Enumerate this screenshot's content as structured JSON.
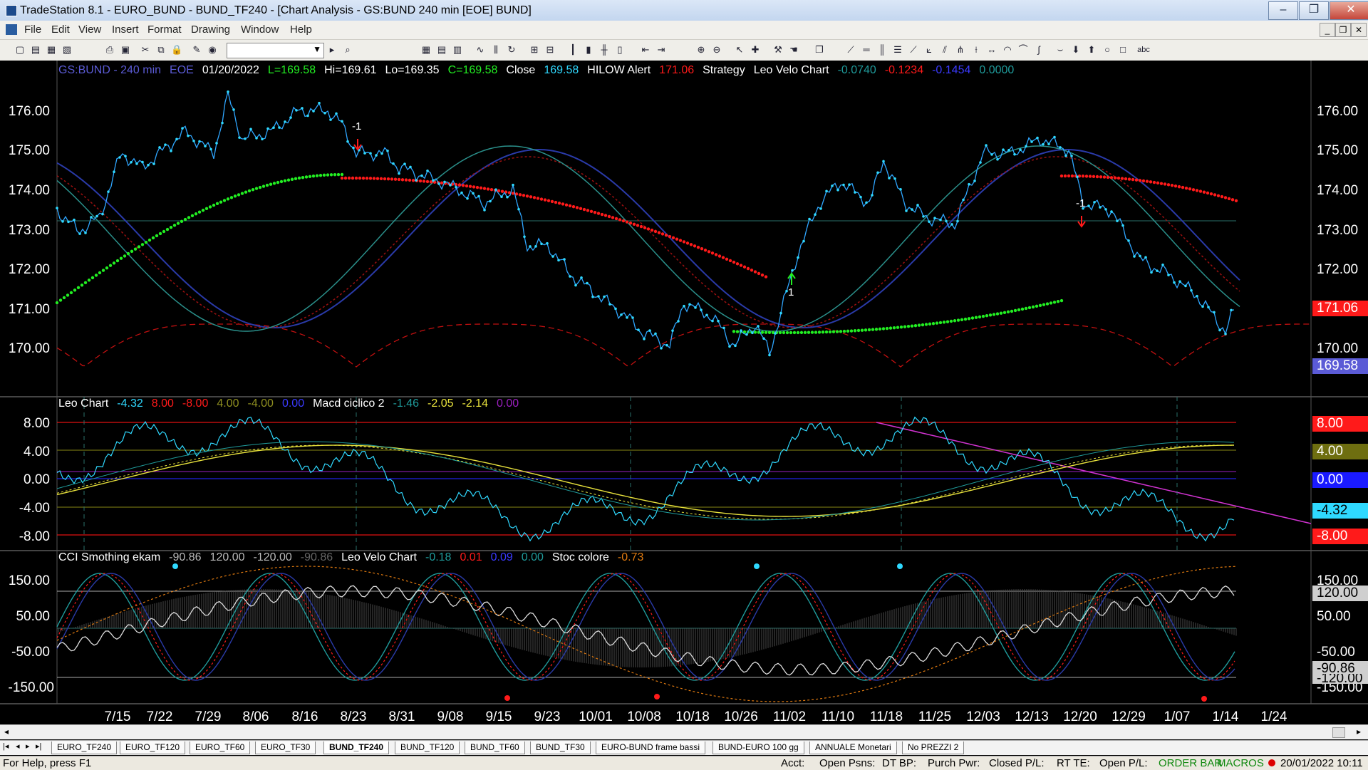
{
  "window": {
    "title": "TradeStation 8.1 - EURO_BUND - BUND_TF240 - [Chart Analysis - GS:BUND  240 min  [EOE] BUND]",
    "controls": [
      "–",
      "❐",
      "✕"
    ]
  },
  "menu": [
    "File",
    "Edit",
    "View",
    "Insert",
    "Format",
    "Drawing",
    "Window",
    "Help"
  ],
  "mdi_controls": [
    "_",
    "❐",
    "✕"
  ],
  "colors": {
    "price_line": "#2fd9ff",
    "green_dots": "#22ee22",
    "red_dots": "#ff1a1a",
    "grid": "#2a6f6a",
    "blue_line": "#2a3aa8",
    "dark_red": "#9c1010",
    "yellow": "#e8e23c",
    "magenta": "#d233d2"
  },
  "pane1": {
    "header": [
      {
        "text": "GS:BUND - 240 min",
        "color": "#5b5bd6"
      },
      {
        "text": "EOE",
        "color": "#5b5bd6"
      },
      {
        "text": "01/20/2022",
        "color": "#ffffff"
      },
      {
        "text": "L=169.58",
        "color": "#22ee22"
      },
      {
        "text": "Hi=169.61",
        "color": "#ffffff"
      },
      {
        "text": "Lo=169.35",
        "color": "#ffffff"
      },
      {
        "text": "C=169.58",
        "color": "#22ee22"
      },
      {
        "text": "Close",
        "color": "#ffffff"
      },
      {
        "text": "169.58",
        "color": "#2fd9ff"
      },
      {
        "text": "HILOW Alert",
        "color": "#ffffff"
      },
      {
        "text": "171.06",
        "color": "#ff1a1a"
      },
      {
        "text": "Strategy",
        "color": "#ffffff"
      },
      {
        "text": "Leo Velo Chart",
        "color": "#ffffff"
      },
      {
        "text": "-0.0740",
        "color": "#1f9b9b"
      },
      {
        "text": "-0.1234",
        "color": "#ff1a1a"
      },
      {
        "text": "-0.1454",
        "color": "#3a3aff"
      },
      {
        "text": "0.0000",
        "color": "#1f9b9b"
      }
    ],
    "y_ticks": [
      "176.00",
      "175.00",
      "174.00",
      "173.00",
      "172.00",
      "171.00",
      "170.00"
    ],
    "tags": [
      {
        "text": "171.06",
        "bg": "#ff1a1a",
        "fg": "#ffffff"
      },
      {
        "text": "169.58",
        "bg": "#5b5bd6",
        "fg": "#ffffff"
      }
    ],
    "annotations": [
      "-1",
      "-1",
      "1"
    ]
  },
  "pane2": {
    "header": [
      {
        "text": "Leo Chart",
        "color": "#ffffff"
      },
      {
        "text": "-4.32",
        "color": "#2fd9ff"
      },
      {
        "text": "8.00",
        "color": "#ff1a1a"
      },
      {
        "text": "-8.00",
        "color": "#ff1a1a"
      },
      {
        "text": "4.00",
        "color": "#8f8f20"
      },
      {
        "text": "-4.00",
        "color": "#8f8f20"
      },
      {
        "text": "0.00",
        "color": "#3a3aff"
      },
      {
        "text": "Macd ciclico 2",
        "color": "#ffffff"
      },
      {
        "text": "-1.46",
        "color": "#1f9b9b"
      },
      {
        "text": "-2.05",
        "color": "#e8e23c"
      },
      {
        "text": "-2.14",
        "color": "#e8e23c"
      },
      {
        "text": "0.00",
        "color": "#9b1fbf"
      }
    ],
    "y_ticks": [
      "8.00",
      "4.00",
      "0.00",
      "-4.00",
      "-8.00"
    ],
    "tags": [
      {
        "text": "8.00",
        "bg": "#ff1a1a",
        "fg": "#ffffff"
      },
      {
        "text": "4.00",
        "bg": "#6e6e10",
        "fg": "#ffffff"
      },
      {
        "text": "0.00",
        "bg": "#1a1aff",
        "fg": "#ffffff"
      },
      {
        "text": "-4.32",
        "bg": "#2fd9ff",
        "fg": "#000000"
      },
      {
        "text": "-8.00",
        "bg": "#ff1a1a",
        "fg": "#ffffff"
      }
    ]
  },
  "pane3": {
    "header": [
      {
        "text": "CCI Smothing ekam",
        "color": "#ffffff"
      },
      {
        "text": "-90.86",
        "color": "#bbbbbb"
      },
      {
        "text": "120.00",
        "color": "#bbbbbb"
      },
      {
        "text": "-120.00",
        "color": "#bbbbbb"
      },
      {
        "text": "-90.86",
        "color": "#666666"
      },
      {
        "text": "Leo Velo Chart",
        "color": "#ffffff"
      },
      {
        "text": "-0.18",
        "color": "#1f9b9b"
      },
      {
        "text": "0.01",
        "color": "#ff1a1a"
      },
      {
        "text": "0.09",
        "color": "#3a3aff"
      },
      {
        "text": "0.00",
        "color": "#1f9b9b"
      },
      {
        "text": "Stoc colore",
        "color": "#ffffff"
      },
      {
        "text": "-0.73",
        "color": "#e07a10"
      }
    ],
    "y_ticks": [
      "150.00",
      "50.00",
      "-50.00",
      "-150.00"
    ],
    "right_ticks": [
      "150.00",
      "50.00",
      "-50.00",
      "-150.00"
    ],
    "tags": [
      {
        "text": "120.00",
        "bg": "#cfcfcf",
        "fg": "#000000"
      },
      {
        "text": "-90.86",
        "bg": "#cfcfcf",
        "fg": "#000000"
      },
      {
        "text": "-120.00",
        "bg": "#cfcfcf",
        "fg": "#000000"
      }
    ]
  },
  "x_ticks": [
    "7/15",
    "7/22",
    "7/29",
    "8/06",
    "8/16",
    "8/23",
    "8/31",
    "9/08",
    "9/15",
    "9/23",
    "10/01",
    "10/08",
    "10/18",
    "10/26",
    "11/02",
    "11/10",
    "11/18",
    "11/25",
    "12/03",
    "12/13",
    "12/20",
    "12/29",
    "1/07",
    "1/14",
    "1/24"
  ],
  "tabs": [
    "EURO_TF240",
    "EURO_TF120",
    "EURO_TF60",
    "EURO_TF30",
    "BUND_TF240",
    "BUND_TF120",
    "BUND_TF60",
    "BUND_TF30",
    "EURO-BUND frame bassi",
    "BUND-EURO 100 gg",
    "ANNUALE Monetari",
    "No PREZZI 2"
  ],
  "active_tab": "BUND_TF240",
  "tab_nav": [
    "|◂",
    "◂",
    "▸",
    "▸|"
  ],
  "status": {
    "help": "For Help, press F1",
    "acct": "Acct:",
    "open_psns": "Open Psns:",
    "dt_bp": "DT BP:",
    "purch_pwr": "Purch Pwr:",
    "closed_pl": "Closed P/L:",
    "rt_te": "RT TE:",
    "open_pl": "Open P/L:",
    "order_bar": "ORDER BAR",
    "macros": "MACROS",
    "datetime": "20/01/2022 10:11"
  }
}
